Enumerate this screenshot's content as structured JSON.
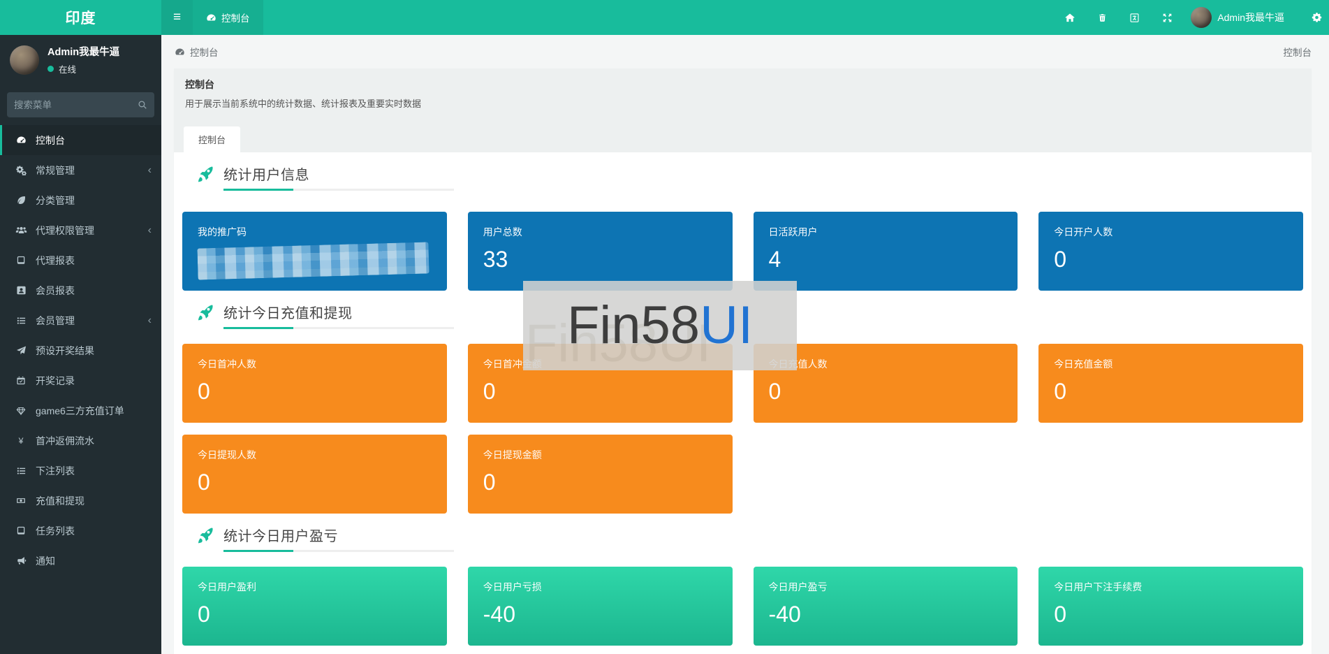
{
  "app": {
    "logo": "印度"
  },
  "navbar": {
    "hamburger_icon": "bars",
    "top_tab": {
      "icon": "tachometer",
      "label": "控制台"
    },
    "right_icons": [
      {
        "name": "home"
      },
      {
        "name": "trash"
      },
      {
        "name": "language-book"
      },
      {
        "name": "expand"
      }
    ],
    "user_name": "Admin我最牛逼",
    "gear_icon": "gear"
  },
  "sidebar": {
    "user": {
      "name": "Admin我最牛逼",
      "status": "在线"
    },
    "search": {
      "placeholder": "搜索菜单",
      "icon": "search"
    },
    "menu": [
      {
        "label": "控制台",
        "icon": "tachometer",
        "active": true,
        "arrow": false
      },
      {
        "label": "常规管理",
        "icon": "cogs",
        "active": false,
        "arrow": true
      },
      {
        "label": "分类管理",
        "icon": "leaf",
        "active": false,
        "arrow": false
      },
      {
        "label": "代理权限管理",
        "icon": "users",
        "active": false,
        "arrow": true
      },
      {
        "label": "代理报表",
        "icon": "book",
        "active": false,
        "arrow": false
      },
      {
        "label": "会员报表",
        "icon": "id-card",
        "active": false,
        "arrow": false
      },
      {
        "label": "会员管理",
        "icon": "list",
        "active": false,
        "arrow": true
      },
      {
        "label": "预设开奖结果",
        "icon": "paper-plane",
        "active": false,
        "arrow": false
      },
      {
        "label": "开奖记录",
        "icon": "calendar-check",
        "active": false,
        "arrow": false
      },
      {
        "label": "game6三方充值订单",
        "icon": "gem",
        "active": false,
        "arrow": false
      },
      {
        "label": "首冲返佣流水",
        "icon": "yen",
        "active": false,
        "arrow": false
      },
      {
        "label": "下注列表",
        "icon": "list",
        "active": false,
        "arrow": false
      },
      {
        "label": "充值和提现",
        "icon": "money-bill",
        "active": false,
        "arrow": false
      },
      {
        "label": "任务列表",
        "icon": "book",
        "active": false,
        "arrow": false
      },
      {
        "label": "通知",
        "icon": "bullhorn",
        "active": false,
        "arrow": false
      }
    ]
  },
  "breadcrumb": {
    "left_icon": "tachometer",
    "left": "控制台",
    "right": "控制台"
  },
  "panel": {
    "title": "控制台",
    "description": "用于展示当前系统中的统计数据、统计报表及重要实时数据",
    "tab": "控制台"
  },
  "sections": [
    {
      "title": "统计用户信息",
      "theme": "blue",
      "rows": [
        [
          {
            "label": "我的推广码",
            "value": "",
            "masked": true
          },
          {
            "label": "用户总数",
            "value": "33"
          },
          {
            "label": "日活跃用户",
            "value": "4"
          },
          {
            "label": "今日开户人数",
            "value": "0"
          }
        ]
      ]
    },
    {
      "title": "统计今日充值和提现",
      "theme": "orange",
      "rows": [
        [
          {
            "label": "今日首冲人数",
            "value": "0"
          },
          {
            "label": "今日首冲金额",
            "value": "0"
          },
          {
            "label": "今日充值人数",
            "value": "0"
          },
          {
            "label": "今日充值金额",
            "value": "0"
          }
        ],
        [
          {
            "label": "今日提现人数",
            "value": "0"
          },
          {
            "label": "今日提现金额",
            "value": "0"
          }
        ]
      ]
    },
    {
      "title": "统计今日用户盈亏",
      "theme": "green",
      "rows": [
        [
          {
            "label": "今日用户盈利",
            "value": "0"
          },
          {
            "label": "今日用户亏损",
            "value": "-40"
          },
          {
            "label": "今日用户盈亏",
            "value": "-40"
          },
          {
            "label": "今日用户下注手续费",
            "value": "0"
          }
        ]
      ]
    }
  ],
  "watermark": {
    "text_dark": "Fin58",
    "text_blue": "UI"
  },
  "colors": {
    "navbar_teal": "#18bc9c",
    "sidebar_dark": "#222d32",
    "card_blue": "#0d74b3",
    "card_orange": "#f78b1d",
    "card_green_top": "#2fd7a9",
    "card_green_bottom": "#1cb68f",
    "watermark_blue": "#2173d2"
  }
}
